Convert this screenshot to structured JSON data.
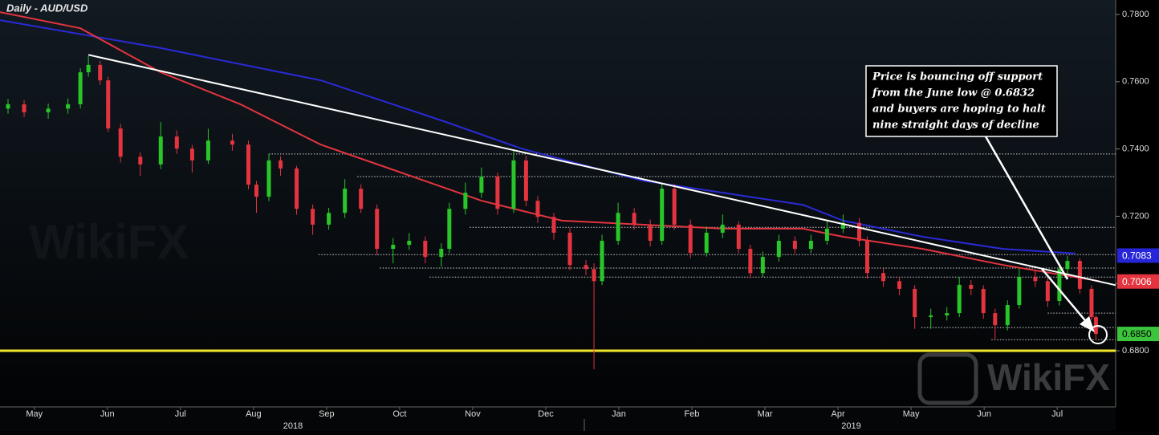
{
  "chart_data": {
    "type": "candlestick",
    "title": "Daily - AUD/USD",
    "up_color": "#29c629",
    "down_color": "#e3343f",
    "xlim": [
      -0.47,
      14.8
    ],
    "xticks": [
      {
        "value": 0,
        "label": "May"
      },
      {
        "value": 1,
        "label": "Jun"
      },
      {
        "value": 2,
        "label": "Jul"
      },
      {
        "value": 3,
        "label": "Aug"
      },
      {
        "value": 4,
        "label": "Sep"
      },
      {
        "value": 5,
        "label": "Oct"
      },
      {
        "value": 6,
        "label": "Nov"
      },
      {
        "value": 7,
        "label": "Dec"
      },
      {
        "value": 8,
        "label": "Jan"
      },
      {
        "value": 9,
        "label": "Feb"
      },
      {
        "value": 10,
        "label": "Mar"
      },
      {
        "value": 11,
        "label": "Apr"
      },
      {
        "value": 12,
        "label": "May"
      },
      {
        "value": 13,
        "label": "Jun"
      },
      {
        "value": 14,
        "label": "Jul"
      }
    ],
    "year_labels": [
      {
        "value": 3.54,
        "label": "2018"
      },
      {
        "value": 11.18,
        "label": "2019"
      }
    ],
    "ylim": [
      0.6633,
      0.7843
    ],
    "yticks": [
      {
        "value": 0.68,
        "label": "0.6800"
      },
      {
        "value": 0.7,
        "label": "0.7000"
      },
      {
        "value": 0.72,
        "label": "0.7200"
      },
      {
        "value": 0.74,
        "label": "0.7400"
      },
      {
        "value": 0.76,
        "label": "0.7600"
      },
      {
        "value": 0.78,
        "label": "0.7800"
      }
    ],
    "x": [
      -0.36,
      -0.14,
      0.19,
      0.46,
      0.63,
      0.74,
      0.9,
      1.01,
      1.18,
      1.45,
      1.73,
      1.95,
      2.16,
      2.38,
      2.71,
      2.93,
      3.04,
      3.21,
      3.37,
      3.59,
      3.81,
      4.03,
      4.25,
      4.47,
      4.69,
      4.91,
      5.13,
      5.35,
      5.57,
      5.68,
      5.9,
      6.12,
      6.34,
      6.56,
      6.73,
      6.89,
      7.11,
      7.33,
      7.55,
      7.66,
      7.77,
      7.99,
      8.21,
      8.43,
      8.59,
      8.76,
      8.98,
      9.2,
      9.42,
      9.64,
      9.8,
      9.97,
      10.19,
      10.41,
      10.63,
      10.85,
      11.07,
      11.29,
      11.4,
      11.62,
      11.84,
      12.05,
      12.27,
      12.49,
      12.66,
      12.82,
      12.99,
      13.15,
      13.32,
      13.48,
      13.7,
      13.87,
      14.03,
      14.14,
      14.31,
      14.47,
      14.53
    ],
    "open": [
      0.752,
      0.7533,
      0.7509,
      0.752,
      0.7533,
      0.7628,
      0.765,
      0.7604,
      0.7461,
      0.7377,
      0.7354,
      0.7437,
      0.7401,
      0.7366,
      0.7425,
      0.7413,
      0.7294,
      0.7258,
      0.7366,
      0.7342,
      0.7222,
      0.7175,
      0.721,
      0.7282,
      0.7222,
      0.7103,
      0.7115,
      0.7127,
      0.7079,
      0.7103,
      0.7222,
      0.727,
      0.7318,
      0.7222,
      0.7366,
      0.7246,
      0.7198,
      0.7151,
      0.7055,
      0.7043,
      0.7007,
      0.7127,
      0.721,
      0.7175,
      0.7127,
      0.7282,
      0.7175,
      0.7091,
      0.7151,
      0.7175,
      0.7103,
      0.7031,
      0.7079,
      0.7127,
      0.7103,
      0.7127,
      0.7163,
      0.718,
      0.7127,
      0.7031,
      0.7007,
      0.6984,
      0.69,
      0.6905,
      0.6912,
      0.6996,
      0.6984,
      0.6912,
      0.6876,
      0.6936,
      0.7019,
      0.7007,
      0.6948,
      0.7043,
      0.7067,
      0.6984,
      0.69
    ],
    "high": [
      0.7548,
      0.7545,
      0.7535,
      0.755,
      0.764,
      0.7676,
      0.7662,
      0.7615,
      0.7475,
      0.739,
      0.748,
      0.7455,
      0.7412,
      0.746,
      0.7445,
      0.7425,
      0.7305,
      0.7385,
      0.7378,
      0.735,
      0.7235,
      0.7225,
      0.731,
      0.7295,
      0.7235,
      0.7135,
      0.715,
      0.714,
      0.712,
      0.724,
      0.73,
      0.7345,
      0.733,
      0.7395,
      0.738,
      0.726,
      0.721,
      0.7165,
      0.707,
      0.706,
      0.7145,
      0.724,
      0.7225,
      0.719,
      0.73,
      0.7295,
      0.719,
      0.717,
      0.7205,
      0.7185,
      0.7115,
      0.7095,
      0.7145,
      0.714,
      0.7145,
      0.7185,
      0.7205,
      0.7195,
      0.714,
      0.7045,
      0.702,
      0.6995,
      0.6925,
      0.693,
      0.702,
      0.701,
      0.6995,
      0.6925,
      0.695,
      0.7045,
      0.704,
      0.702,
      0.706,
      0.7082,
      0.7075,
      0.6995,
      0.6905
    ],
    "low": [
      0.7505,
      0.7495,
      0.749,
      0.7505,
      0.752,
      0.7615,
      0.759,
      0.745,
      0.736,
      0.732,
      0.734,
      0.7385,
      0.733,
      0.7355,
      0.7395,
      0.728,
      0.721,
      0.7245,
      0.732,
      0.7205,
      0.7145,
      0.716,
      0.7195,
      0.721,
      0.7085,
      0.706,
      0.71,
      0.706,
      0.705,
      0.709,
      0.7205,
      0.7255,
      0.7205,
      0.721,
      0.723,
      0.718,
      0.713,
      0.704,
      0.7025,
      0.6745,
      0.6995,
      0.7115,
      0.716,
      0.711,
      0.7115,
      0.716,
      0.7075,
      0.708,
      0.7135,
      0.709,
      0.7015,
      0.702,
      0.7065,
      0.709,
      0.709,
      0.7115,
      0.715,
      0.711,
      0.7015,
      0.699,
      0.6965,
      0.6865,
      0.6865,
      0.689,
      0.69,
      0.6965,
      0.6895,
      0.6832,
      0.686,
      0.6925,
      0.699,
      0.693,
      0.6935,
      0.703,
      0.697,
      0.689,
      0.6832
    ],
    "close": [
      0.7533,
      0.7509,
      0.752,
      0.7533,
      0.7628,
      0.765,
      0.7604,
      0.7461,
      0.7377,
      0.7354,
      0.7437,
      0.7401,
      0.7366,
      0.7425,
      0.7413,
      0.7294,
      0.7258,
      0.7366,
      0.7342,
      0.7222,
      0.7175,
      0.721,
      0.7282,
      0.7222,
      0.7103,
      0.7115,
      0.7127,
      0.7079,
      0.7103,
      0.7222,
      0.727,
      0.7318,
      0.7222,
      0.7366,
      0.7246,
      0.7198,
      0.7151,
      0.7055,
      0.7043,
      0.7007,
      0.7127,
      0.721,
      0.7175,
      0.7127,
      0.7282,
      0.7175,
      0.7091,
      0.7151,
      0.7175,
      0.7103,
      0.7031,
      0.7079,
      0.7127,
      0.7103,
      0.7127,
      0.7163,
      0.718,
      0.7127,
      0.7031,
      0.7007,
      0.6984,
      0.69,
      0.6905,
      0.6912,
      0.6996,
      0.6984,
      0.6912,
      0.6876,
      0.6936,
      0.7019,
      0.7007,
      0.6948,
      0.7043,
      0.7067,
      0.6984,
      0.69,
      0.685
    ],
    "lines": [
      {
        "color": "#2a2ad6",
        "x": [
          -0.47,
          1.73,
          3.92,
          5.57,
          6.67,
          8.32,
          9.42,
          10.52,
          11.07,
          12.16,
          13.26,
          14.25
        ],
        "values": [
          0.7783,
          0.77,
          0.7604,
          0.7485,
          0.7401,
          0.7306,
          0.727,
          0.7234,
          0.7187,
          0.7139,
          0.7103,
          0.7089
        ]
      },
      {
        "color": "#e3343f",
        "x": [
          -0.47,
          0.63,
          1.73,
          2.82,
          3.92,
          5.02,
          6.12,
          7.22,
          8.32,
          9.42,
          10.52,
          11.07,
          12.16,
          13.26,
          14.58
        ],
        "values": [
          0.7807,
          0.7759,
          0.7628,
          0.7533,
          0.7413,
          0.733,
          0.7246,
          0.7187,
          0.7175,
          0.7163,
          0.7163,
          0.7139,
          0.7103,
          0.7055,
          0.7007
        ]
      }
    ],
    "trendline": {
      "color": "#ffffff",
      "x": [
        0.74,
        14.8
      ],
      "values": [
        0.768,
        0.6995
      ]
    },
    "support": {
      "color": "#f2e62b",
      "value": 0.68
    },
    "levels": [
      {
        "x": 3.21,
        "value": 0.7385
      },
      {
        "x": 4.42,
        "value": 0.7318
      },
      {
        "x": 5.96,
        "value": 0.7167
      },
      {
        "x": 3.89,
        "value": 0.7086
      },
      {
        "x": 4.73,
        "value": 0.7046
      },
      {
        "x": 5.41,
        "value": 0.7019
      },
      {
        "x": 13.87,
        "value": 0.6912
      },
      {
        "x": 12.14,
        "value": 0.6869
      },
      {
        "x": 13.1,
        "value": 0.6833
      }
    ],
    "price_labels": [
      {
        "value": 0.7083,
        "label": "0.7083",
        "color": "#2626d8"
      },
      {
        "value": 0.7006,
        "label": "0.7006",
        "color": "#e3343f"
      },
      {
        "value": 0.685,
        "label": "0.6850",
        "color": "#3cc43c"
      }
    ],
    "annotation": [
      "Price is bouncing off support",
      "from the June low @ 0.6832",
      "and buyers are hoping to halt",
      "nine straight days of decline"
    ],
    "watermark": "WikiFX"
  }
}
